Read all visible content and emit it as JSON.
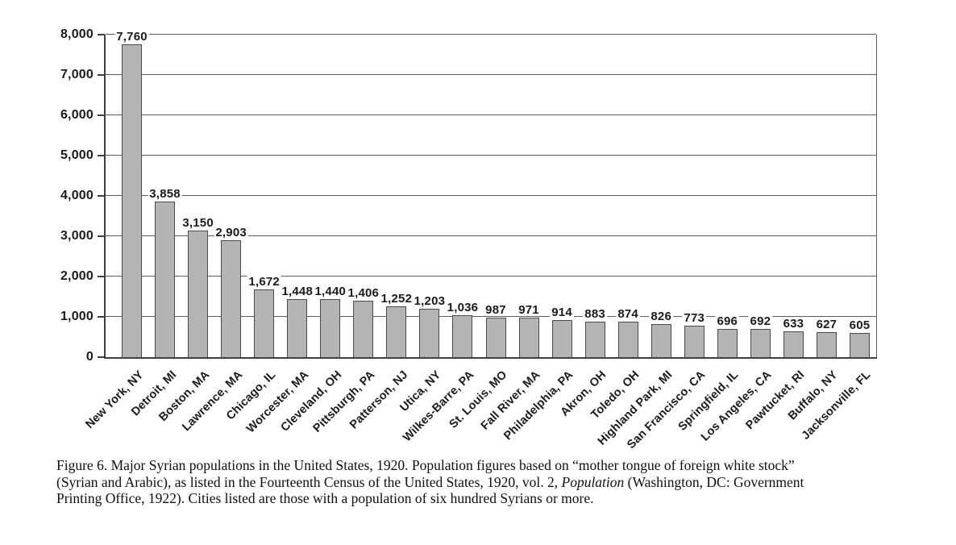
{
  "figure": {
    "caption_lines": [
      [
        {
          "text": "Figure 6. Major Syrian populations in the United States, 1920. Population figures based on “mother tongue of foreign white stock”"
        }
      ],
      [
        {
          "text": "(Syrian and Arabic), as listed in the Fourteenth Census of the United States, 1920, vol. 2, "
        },
        {
          "text": "Population",
          "italic": true
        },
        {
          "text": " (Washington, DC: Government"
        }
      ],
      [
        {
          "text": "Printing Office, 1922). Cities listed are those with a population of six hundred Syrians or more."
        }
      ]
    ]
  },
  "chart_data": {
    "type": "bar",
    "title": "",
    "xlabel": "",
    "ylabel": "",
    "categories": [
      "New York, NY",
      "Detroit, MI",
      "Boston, MA",
      "Lawrence, MA",
      "Chicago, IL",
      "Worcester, MA",
      "Cleveland, OH",
      "Pittsburgh, PA",
      "Patterson, NJ",
      "Utica, NY",
      "Wilkes-Barre, PA",
      "St. Louis, MO",
      "Fall River, MA",
      "Philadelphia, PA",
      "Akron, OH",
      "Toledo, OH",
      "Highland Park, MI",
      "San Francisco, CA",
      "Springfield, IL",
      "Los Angeles, CA",
      "Pawtucket, RI",
      "Buffalo, NY",
      "Jacksonville, FL"
    ],
    "values": [
      7760,
      3858,
      3150,
      2903,
      1672,
      1448,
      1440,
      1406,
      1252,
      1203,
      1036,
      987,
      971,
      914,
      883,
      874,
      826,
      773,
      696,
      692,
      633,
      627,
      605
    ],
    "value_labels": [
      "7,760",
      "3,858",
      "3,150",
      "2,903",
      "1,672",
      "1,448",
      "1,440",
      "1,406",
      "1,252",
      "1,203",
      "1,036",
      "987",
      "971",
      "914",
      "883",
      "874",
      "826",
      "773",
      "696",
      "692",
      "633",
      "627",
      "605"
    ],
    "ylim": [
      0,
      8000
    ],
    "ytick_interval": 1000,
    "ytick_labels": [
      "0",
      "1,000",
      "2,000",
      "3,000",
      "4,000",
      "5,000",
      "6,000",
      "7,000",
      "8,000"
    ],
    "grid": true,
    "legend": "none",
    "colors": {
      "bar_fill": "#b4b4b4",
      "bar_border": "#4a4a4a",
      "gridline": "#5c5c5c",
      "axis": "#3f3f3f",
      "text": "#1b1b1b"
    }
  }
}
